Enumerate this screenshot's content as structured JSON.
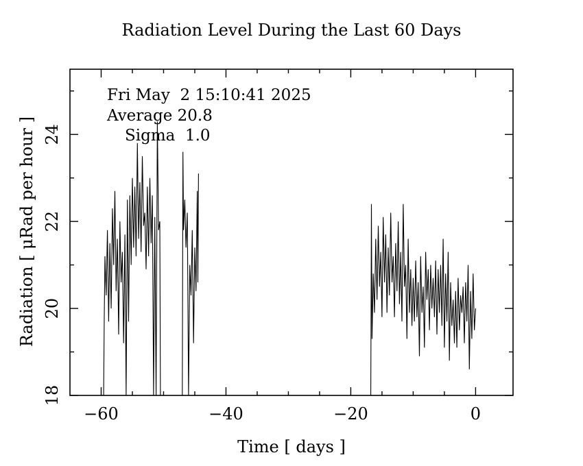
{
  "chart_data": {
    "type": "line",
    "title": "Radiation Level During the Last 60 Days",
    "xlabel": "Time [ days ]",
    "ylabel": "Radiation [ μRad per hour ]",
    "xlim": [
      -65,
      6
    ],
    "ylim": [
      18,
      25.5
    ],
    "xticks": [
      {
        "value": -60,
        "label": "−60"
      },
      {
        "value": -40,
        "label": "−40"
      },
      {
        "value": -20,
        "label": "−20"
      },
      {
        "value": 0,
        "label": "0"
      }
    ],
    "yticks": [
      {
        "value": 18,
        "label": "18"
      },
      {
        "value": 20,
        "label": "20"
      },
      {
        "value": 22,
        "label": "22"
      },
      {
        "value": 24,
        "label": "24"
      }
    ],
    "grid": false,
    "annotations": {
      "date": "Fri May  2 15:10:41 2025",
      "average": "Average 20.8",
      "sigma": "Sigma  1.0"
    },
    "series": [
      {
        "segment": "early",
        "x": [
          -59.6,
          -59.5,
          -59.4,
          -59.2,
          -59.0,
          -58.8,
          -58.6,
          -58.4,
          -58.2,
          -58.0,
          -57.8,
          -57.6,
          -57.4,
          -57.2,
          -57.0,
          -56.8,
          -56.6,
          -56.4,
          -56.2,
          -56.0,
          -55.8,
          -55.6,
          -55.4,
          -55.2,
          -55.0,
          -54.8,
          -54.6,
          -54.4,
          -54.2,
          -54.0,
          -53.8,
          -53.6,
          -53.4,
          -53.2,
          -53.0,
          -52.8,
          -52.6,
          -52.4,
          -52.2,
          -52.0,
          -51.8,
          -51.6,
          -51.4,
          -51.2,
          -51.0,
          -50.8,
          -50.6,
          -50.5
        ],
        "y": [
          18.0,
          19.8,
          21.2,
          20.3,
          21.8,
          19.7,
          21.5,
          20.0,
          22.3,
          21.0,
          22.7,
          20.4,
          21.6,
          19.4,
          22.0,
          20.6,
          21.3,
          19.2,
          21.7,
          18.0,
          22.5,
          19.7,
          22.6,
          21.0,
          23.0,
          21.4,
          22.8,
          21.2,
          23.8,
          21.6,
          22.9,
          21.3,
          23.5,
          21.9,
          22.2,
          20.9,
          22.8,
          21.2,
          23.0,
          21.5,
          22.6,
          18.0,
          22.1,
          18.0,
          24.3,
          21.8,
          22.0,
          18.0
        ]
      },
      {
        "segment": "middle",
        "x": [
          -47.0,
          -46.9,
          -46.8,
          -46.6,
          -46.4,
          -46.2,
          -46.0,
          -45.8,
          -45.6,
          -45.4,
          -45.2,
          -45.0,
          -44.8,
          -44.6,
          -44.5,
          -44.4
        ],
        "y": [
          18.0,
          23.6,
          21.8,
          22.5,
          21.4,
          22.2,
          18.0,
          21.0,
          20.3,
          21.8,
          19.2,
          21.4,
          20.4,
          22.7,
          20.6,
          23.1
        ]
      },
      {
        "segment": "recent",
        "x": [
          -16.8,
          -16.7,
          -16.6,
          -16.4,
          -16.2,
          -16.0,
          -15.8,
          -15.6,
          -15.4,
          -15.2,
          -15.0,
          -14.8,
          -14.6,
          -14.4,
          -14.2,
          -14.0,
          -13.8,
          -13.6,
          -13.4,
          -13.2,
          -13.0,
          -12.8,
          -12.6,
          -12.4,
          -12.2,
          -12.0,
          -11.8,
          -11.6,
          -11.4,
          -11.2,
          -11.0,
          -10.8,
          -10.6,
          -10.4,
          -10.2,
          -10.0,
          -9.8,
          -9.6,
          -9.4,
          -9.2,
          -9.0,
          -8.8,
          -8.6,
          -8.4,
          -8.2,
          -8.0,
          -7.8,
          -7.6,
          -7.4,
          -7.2,
          -7.0,
          -6.8,
          -6.6,
          -6.4,
          -6.2,
          -6.0,
          -5.8,
          -5.6,
          -5.4,
          -5.2,
          -5.0,
          -4.8,
          -4.6,
          -4.4,
          -4.2,
          -4.0,
          -3.8,
          -3.6,
          -3.4,
          -3.2,
          -3.0,
          -2.8,
          -2.6,
          -2.4,
          -2.2,
          -2.0,
          -1.8,
          -1.6,
          -1.4,
          -1.2,
          -1.0,
          -0.8,
          -0.6,
          -0.4,
          -0.2,
          0.0
        ],
        "y": [
          18.0,
          22.4,
          19.3,
          20.8,
          19.9,
          21.6,
          20.2,
          21.9,
          20.5,
          21.3,
          19.8,
          22.1,
          20.6,
          21.7,
          19.9,
          21.4,
          20.3,
          22.2,
          20.6,
          21.2,
          19.8,
          21.5,
          20.4,
          22.0,
          20.1,
          21.3,
          19.7,
          22.4,
          20.5,
          21.0,
          19.3,
          21.6,
          19.9,
          20.9,
          19.6,
          20.7,
          19.7,
          21.1,
          19.8,
          20.6,
          18.9,
          21.2,
          19.9,
          20.5,
          19.1,
          21.3,
          20.2,
          20.9,
          19.5,
          21.0,
          20.0,
          20.7,
          19.8,
          21.1,
          19.4,
          20.9,
          19.9,
          21.0,
          19.6,
          21.6,
          19.1,
          20.8,
          19.7,
          21.3,
          18.8,
          20.6,
          19.6,
          20.2,
          19.2,
          20.4,
          19.1,
          20.7,
          19.5,
          20.3,
          19.9,
          20.5,
          19.2,
          20.6,
          19.7,
          21.0,
          18.6,
          20.4,
          19.3,
          20.8,
          19.5,
          20.0
        ]
      }
    ]
  }
}
